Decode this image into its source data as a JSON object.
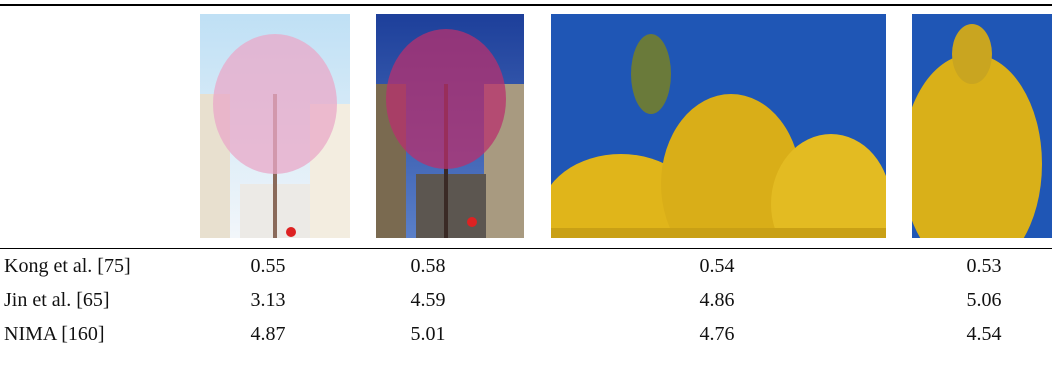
{
  "table": {
    "rows": [
      {
        "label": "Kong et al. [75]",
        "values": [
          "0.55",
          "0.58",
          "0.54",
          "0.53"
        ]
      },
      {
        "label": "Jin et al. [65]",
        "values": [
          "3.13",
          "4.59",
          "4.86",
          "5.06"
        ]
      },
      {
        "label": "NIMA [160]",
        "values": [
          "4.87",
          "5.01",
          "4.76",
          "4.54"
        ]
      }
    ]
  }
}
